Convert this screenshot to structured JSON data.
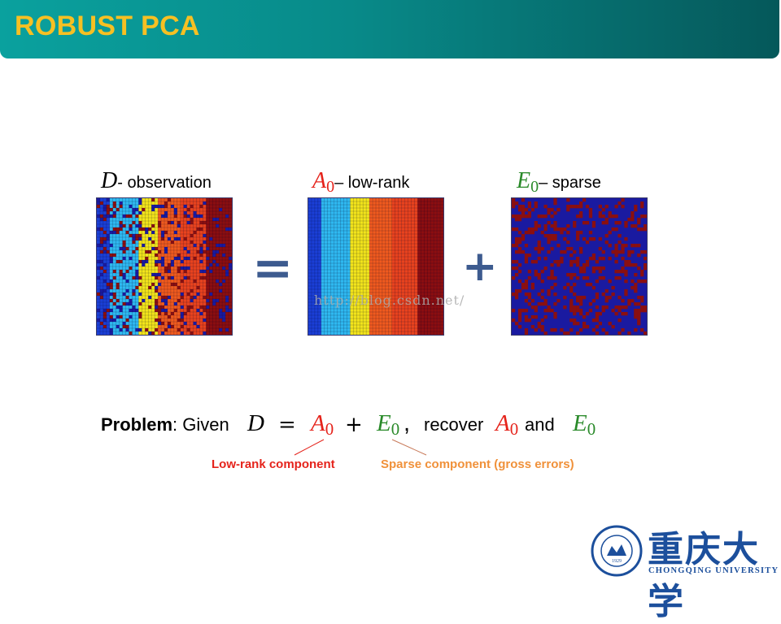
{
  "header": {
    "title": "ROBUST PCA"
  },
  "figure": {
    "d_symbol": "D",
    "d_label": "- observation",
    "a_symbol": "A",
    "a_sub": "0",
    "a_label": "– low-rank",
    "e_symbol": "E",
    "e_sub": "0",
    "e_label": "– sparse",
    "equals_sign": "=",
    "plus_sign": "+",
    "watermark": "http://blog.csdn.net/"
  },
  "problem": {
    "label": "Problem",
    "given": ": Given",
    "d": "D",
    "eq": "=",
    "a": "A",
    "a_sub": "0",
    "plus": "+",
    "e": "E",
    "e_sub": "0",
    "comma": ",",
    "recover": "recover",
    "a2": "A",
    "a2_sub": "0",
    "and": "and",
    "e2": "E",
    "e2_sub": "0"
  },
  "captions": {
    "low_rank": "Low-rank component",
    "sparse": "Sparse component (gross errors)"
  },
  "logo": {
    "chinese": "重庆大学",
    "english": "CHONGQING UNIVERSITY",
    "emblem_text": "CHONGQING UNIVERSITY",
    "emblem_year": "1929"
  },
  "colors": {
    "title_text": "#f6c023",
    "low_rank_caption": "#e5231b",
    "sparse_caption": "#f0913a",
    "matrix_bands": [
      "#1b3fd6",
      "#2fb8f0",
      "#7ee8f6",
      "#f2e41b",
      "#f05a1e",
      "#e8421e",
      "#8c0e10"
    ],
    "sparse_bg": "#1a1aa0",
    "sparse_dot": "#8a0f10"
  }
}
